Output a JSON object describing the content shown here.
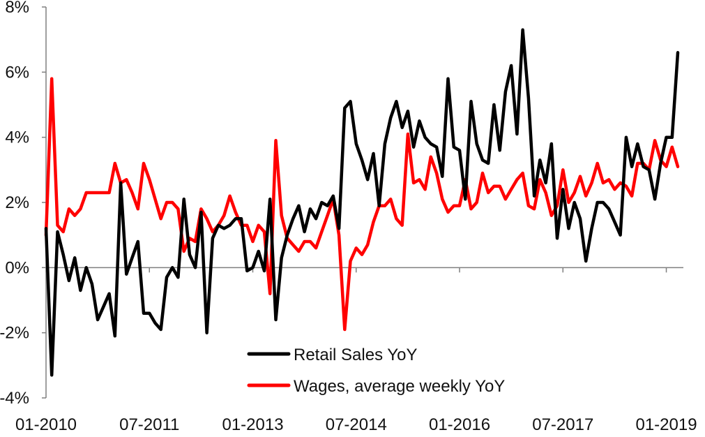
{
  "chart_data": {
    "type": "line",
    "title": "",
    "xlabel": "",
    "ylabel": "",
    "ylim": [
      -4,
      8
    ],
    "y_tick_values": [
      -4,
      -2,
      0,
      2,
      4,
      6,
      8
    ],
    "y_tick_labels": [
      "-4%",
      "-2%",
      "0%",
      "2%",
      "4%",
      "6%",
      "8%"
    ],
    "x_tick_labels": [
      "01-2010",
      "07-2011",
      "01-2013",
      "07-2014",
      "01-2016",
      "07-2017",
      "01-2019"
    ],
    "x_range": [
      "01-2010",
      "02-2019"
    ],
    "x_unit": "month",
    "grid": false,
    "legend_position": "bottom-center",
    "series": [
      {
        "name": "Retail Sales YoY",
        "color": "#000000",
        "points": [
          [
            "01-2010",
            1.2
          ],
          [
            "02-2010",
            -3.3
          ],
          [
            "03-2010",
            1.1
          ],
          [
            "04-2010",
            0.4
          ],
          [
            "05-2010",
            -0.4
          ],
          [
            "06-2010",
            0.3
          ],
          [
            "07-2010",
            -0.7
          ],
          [
            "08-2010",
            0.0
          ],
          [
            "09-2010",
            -0.5
          ],
          [
            "10-2010",
            -1.6
          ],
          [
            "11-2010",
            -1.2
          ],
          [
            "12-2010",
            -0.8
          ],
          [
            "01-2011",
            -2.1
          ],
          [
            "02-2011",
            2.6
          ],
          [
            "03-2011",
            -0.2
          ],
          [
            "04-2011",
            0.3
          ],
          [
            "05-2011",
            0.8
          ],
          [
            "06-2011",
            -1.4
          ],
          [
            "07-2011",
            -1.4
          ],
          [
            "08-2011",
            -1.7
          ],
          [
            "09-2011",
            -1.9
          ],
          [
            "10-2011",
            -0.3
          ],
          [
            "11-2011",
            0.0
          ],
          [
            "12-2011",
            -0.3
          ],
          [
            "01-2012",
            2.1
          ],
          [
            "02-2012",
            0.4
          ],
          [
            "03-2012",
            0.0
          ],
          [
            "04-2012",
            1.7
          ],
          [
            "05-2012",
            -2.0
          ],
          [
            "06-2012",
            0.9
          ],
          [
            "07-2012",
            1.3
          ],
          [
            "08-2012",
            1.2
          ],
          [
            "09-2012",
            1.3
          ],
          [
            "10-2012",
            1.5
          ],
          [
            "11-2012",
            1.5
          ],
          [
            "12-2012",
            -0.1
          ],
          [
            "01-2013",
            0.0
          ],
          [
            "02-2013",
            0.5
          ],
          [
            "03-2013",
            -0.1
          ],
          [
            "04-2013",
            2.1
          ],
          [
            "05-2013",
            -1.6
          ],
          [
            "06-2013",
            0.3
          ],
          [
            "07-2013",
            1.0
          ],
          [
            "08-2013",
            1.5
          ],
          [
            "09-2013",
            1.9
          ],
          [
            "10-2013",
            1.1
          ],
          [
            "11-2013",
            1.8
          ],
          [
            "12-2013",
            1.5
          ],
          [
            "01-2014",
            2.0
          ],
          [
            "02-2014",
            1.9
          ],
          [
            "03-2014",
            2.2
          ],
          [
            "04-2014",
            1.2
          ],
          [
            "05-2014",
            4.9
          ],
          [
            "06-2014",
            5.1
          ],
          [
            "07-2014",
            3.8
          ],
          [
            "08-2014",
            3.3
          ],
          [
            "09-2014",
            2.7
          ],
          [
            "10-2014",
            3.5
          ],
          [
            "11-2014",
            1.9
          ],
          [
            "12-2014",
            3.8
          ],
          [
            "01-2015",
            4.6
          ],
          [
            "02-2015",
            5.1
          ],
          [
            "03-2015",
            4.3
          ],
          [
            "04-2015",
            4.8
          ],
          [
            "05-2015",
            3.7
          ],
          [
            "06-2015",
            4.5
          ],
          [
            "07-2015",
            4.0
          ],
          [
            "08-2015",
            3.8
          ],
          [
            "09-2015",
            3.7
          ],
          [
            "10-2015",
            2.8
          ],
          [
            "11-2015",
            5.8
          ],
          [
            "12-2015",
            3.7
          ],
          [
            "01-2016",
            3.6
          ],
          [
            "02-2016",
            2.1
          ],
          [
            "03-2016",
            5.1
          ],
          [
            "04-2016",
            3.8
          ],
          [
            "05-2016",
            3.3
          ],
          [
            "06-2016",
            3.2
          ],
          [
            "07-2016",
            5.0
          ],
          [
            "08-2016",
            3.6
          ],
          [
            "09-2016",
            5.4
          ],
          [
            "10-2016",
            6.2
          ],
          [
            "11-2016",
            4.1
          ],
          [
            "12-2016",
            7.3
          ],
          [
            "01-2017",
            5.2
          ],
          [
            "02-2017",
            2.2
          ],
          [
            "03-2017",
            3.3
          ],
          [
            "04-2017",
            2.6
          ],
          [
            "05-2017",
            3.8
          ],
          [
            "06-2017",
            0.9
          ],
          [
            "07-2017",
            2.4
          ],
          [
            "08-2017",
            1.2
          ],
          [
            "09-2017",
            2.0
          ],
          [
            "10-2017",
            1.5
          ],
          [
            "11-2017",
            0.2
          ],
          [
            "12-2017",
            1.2
          ],
          [
            "01-2018",
            2.0
          ],
          [
            "02-2018",
            2.0
          ],
          [
            "03-2018",
            1.8
          ],
          [
            "04-2018",
            1.4
          ],
          [
            "05-2018",
            1.0
          ],
          [
            "06-2018",
            4.0
          ],
          [
            "07-2018",
            3.1
          ],
          [
            "08-2018",
            3.8
          ],
          [
            "09-2018",
            3.1
          ],
          [
            "10-2018",
            3.0
          ],
          [
            "11-2018",
            2.1
          ],
          [
            "12-2018",
            3.2
          ],
          [
            "01-2019",
            4.0
          ],
          [
            "02-2019",
            4.0
          ],
          [
            "03-2019",
            6.6
          ]
        ]
      },
      {
        "name": "Wages, average weekly YoY",
        "color": "#ff0000",
        "points": [
          [
            "01-2010",
            1.0
          ],
          [
            "02-2010",
            5.8
          ],
          [
            "03-2010",
            1.3
          ],
          [
            "04-2010",
            1.1
          ],
          [
            "05-2010",
            1.8
          ],
          [
            "06-2010",
            1.6
          ],
          [
            "07-2010",
            1.8
          ],
          [
            "08-2010",
            2.3
          ],
          [
            "09-2010",
            2.3
          ],
          [
            "10-2010",
            2.3
          ],
          [
            "11-2010",
            2.3
          ],
          [
            "12-2010",
            2.3
          ],
          [
            "01-2011",
            3.2
          ],
          [
            "02-2011",
            2.6
          ],
          [
            "03-2011",
            2.7
          ],
          [
            "04-2011",
            2.3
          ],
          [
            "05-2011",
            1.8
          ],
          [
            "06-2011",
            3.2
          ],
          [
            "07-2011",
            2.7
          ],
          [
            "08-2011",
            2.1
          ],
          [
            "09-2011",
            1.5
          ],
          [
            "10-2011",
            2.0
          ],
          [
            "11-2011",
            2.0
          ],
          [
            "12-2011",
            1.8
          ],
          [
            "01-2012",
            0.5
          ],
          [
            "02-2012",
            0.9
          ],
          [
            "03-2012",
            0.8
          ],
          [
            "04-2012",
            1.8
          ],
          [
            "05-2012",
            1.5
          ],
          [
            "06-2012",
            1.1
          ],
          [
            "07-2012",
            1.3
          ],
          [
            "08-2012",
            1.6
          ],
          [
            "09-2012",
            2.2
          ],
          [
            "10-2012",
            1.7
          ],
          [
            "11-2012",
            1.3
          ],
          [
            "12-2012",
            1.3
          ],
          [
            "01-2013",
            0.8
          ],
          [
            "02-2013",
            1.3
          ],
          [
            "03-2013",
            1.1
          ],
          [
            "04-2013",
            -0.8
          ],
          [
            "05-2013",
            3.9
          ],
          [
            "06-2013",
            1.6
          ],
          [
            "07-2013",
            0.9
          ],
          [
            "08-2013",
            0.7
          ],
          [
            "09-2013",
            0.5
          ],
          [
            "10-2013",
            0.8
          ],
          [
            "11-2013",
            0.8
          ],
          [
            "12-2013",
            0.6
          ],
          [
            "01-2014",
            1.1
          ],
          [
            "02-2014",
            1.6
          ],
          [
            "03-2014",
            2.1
          ],
          [
            "04-2014",
            1.0
          ],
          [
            "05-2014",
            -1.9
          ],
          [
            "06-2014",
            0.2
          ],
          [
            "07-2014",
            0.6
          ],
          [
            "08-2014",
            0.4
          ],
          [
            "09-2014",
            0.7
          ],
          [
            "10-2014",
            1.4
          ],
          [
            "11-2014",
            1.9
          ],
          [
            "12-2014",
            1.9
          ],
          [
            "01-2015",
            2.1
          ],
          [
            "02-2015",
            1.5
          ],
          [
            "03-2015",
            1.3
          ],
          [
            "04-2015",
            4.1
          ],
          [
            "05-2015",
            2.6
          ],
          [
            "06-2015",
            2.7
          ],
          [
            "07-2015",
            2.4
          ],
          [
            "08-2015",
            3.4
          ],
          [
            "09-2015",
            2.9
          ],
          [
            "10-2015",
            2.1
          ],
          [
            "11-2015",
            1.7
          ],
          [
            "12-2015",
            1.9
          ],
          [
            "01-2016",
            1.9
          ],
          [
            "02-2016",
            2.7
          ],
          [
            "03-2016",
            1.8
          ],
          [
            "04-2016",
            2.0
          ],
          [
            "05-2016",
            2.9
          ],
          [
            "06-2016",
            2.3
          ],
          [
            "07-2016",
            2.5
          ],
          [
            "08-2016",
            2.5
          ],
          [
            "09-2016",
            2.1
          ],
          [
            "10-2016",
            2.4
          ],
          [
            "11-2016",
            2.7
          ],
          [
            "12-2016",
            2.9
          ],
          [
            "01-2017",
            1.9
          ],
          [
            "02-2017",
            1.8
          ],
          [
            "03-2017",
            2.7
          ],
          [
            "04-2017",
            2.3
          ],
          [
            "05-2017",
            1.6
          ],
          [
            "06-2017",
            1.9
          ],
          [
            "07-2017",
            3.0
          ],
          [
            "08-2017",
            2.0
          ],
          [
            "09-2017",
            2.3
          ],
          [
            "10-2017",
            2.8
          ],
          [
            "11-2017",
            2.2
          ],
          [
            "12-2017",
            2.6
          ],
          [
            "01-2018",
            3.2
          ],
          [
            "02-2018",
            2.6
          ],
          [
            "03-2018",
            2.7
          ],
          [
            "04-2018",
            2.4
          ],
          [
            "05-2018",
            2.6
          ],
          [
            "06-2018",
            2.5
          ],
          [
            "07-2018",
            2.2
          ],
          [
            "08-2018",
            3.2
          ],
          [
            "09-2018",
            3.2
          ],
          [
            "10-2018",
            3.0
          ],
          [
            "11-2018",
            3.9
          ],
          [
            "12-2018",
            3.3
          ],
          [
            "01-2019",
            3.1
          ],
          [
            "02-2019",
            3.7
          ],
          [
            "03-2019",
            3.1
          ]
        ]
      }
    ]
  }
}
